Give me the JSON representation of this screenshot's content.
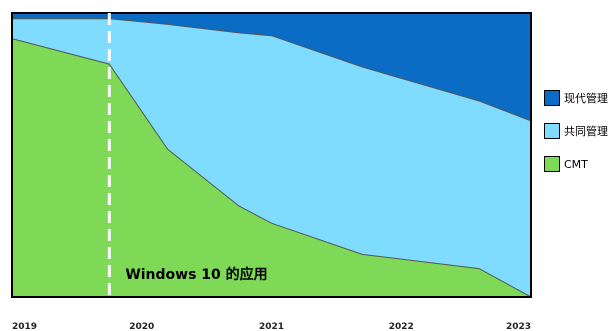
{
  "chart_data": {
    "type": "area",
    "stacked": true,
    "normalized": true,
    "x": [
      2019.0,
      2019.75,
      2020.2,
      2020.75,
      2021.0,
      2021.7,
      2022.6,
      2023.0
    ],
    "xticks": [
      2019,
      2020,
      2021,
      2022,
      2023
    ],
    "xtick_labels": [
      "2019",
      "2020",
      "2021",
      "2022",
      "2023"
    ],
    "xlim": [
      2019,
      2023
    ],
    "ylim": [
      0,
      100
    ],
    "title": "",
    "xlabel": "",
    "ylabel": "",
    "series": [
      {
        "name": "CMT",
        "color": "#7ed957",
        "values": [
          91,
          82,
          52,
          32,
          26,
          15,
          10,
          0
        ]
      },
      {
        "name": "共同管理",
        "color": "#7fdcff",
        "values": [
          7,
          16,
          44,
          61,
          66,
          66,
          59,
          62
        ]
      },
      {
        "name": "现代管理",
        "color": "#0a6cc5",
        "values": [
          2,
          2,
          4,
          7,
          8,
          19,
          31,
          38
        ]
      }
    ],
    "legend_placement": "right",
    "legend": [
      "现代管理",
      "共同管理",
      "CMT"
    ],
    "annotation": {
      "text": "Windows 10 的应用",
      "x": 2019.75
    },
    "grid": false
  }
}
